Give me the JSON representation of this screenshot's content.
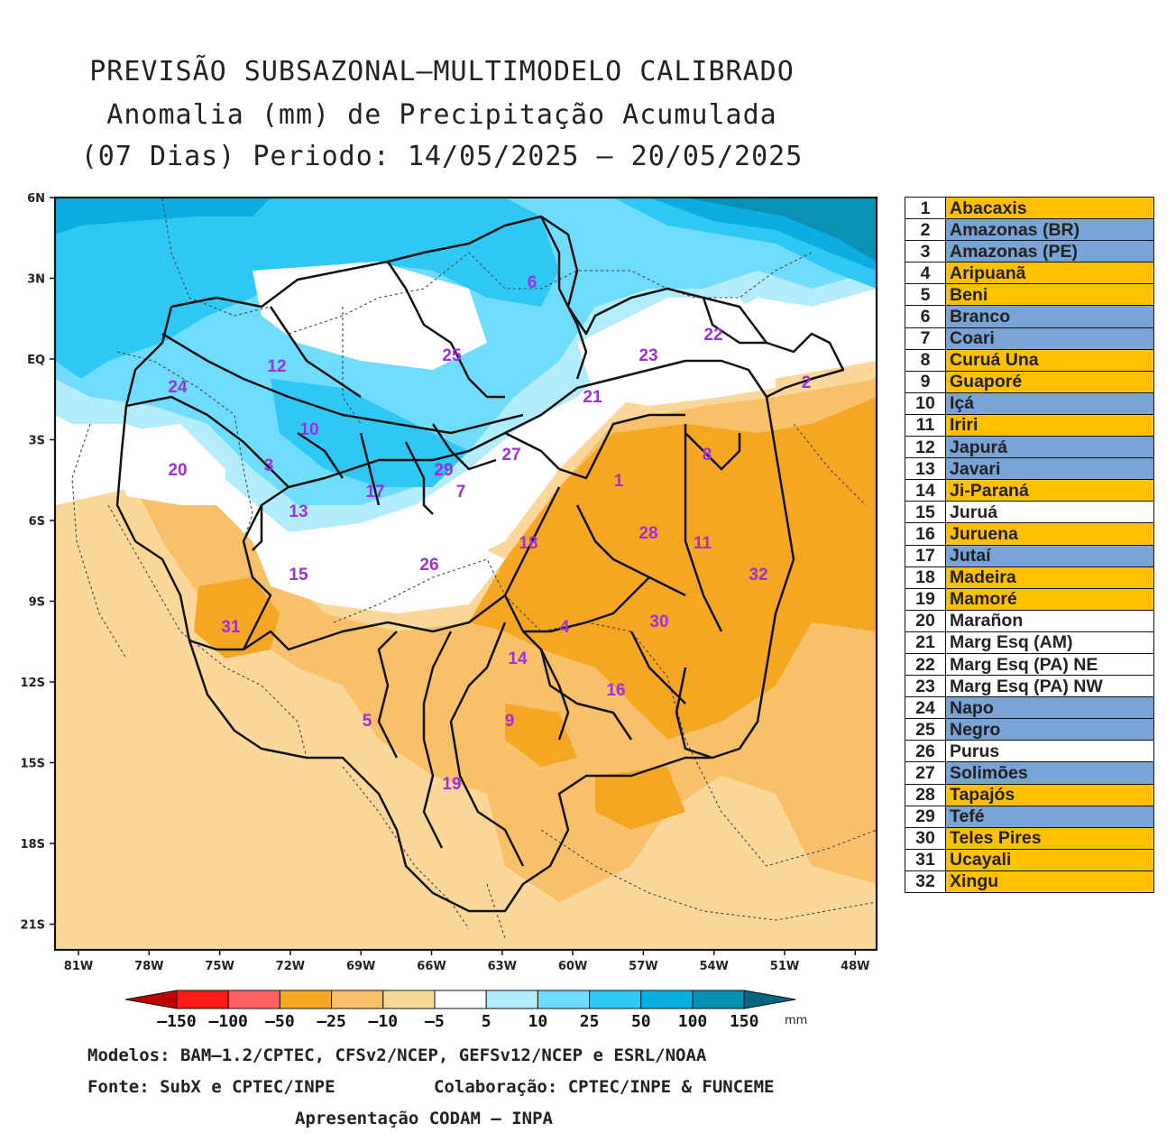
{
  "title": {
    "line1": "PREVISÃO SUBSAZONAL–MULTIMODELO CALIBRADO",
    "line2": "Anomalia (mm) de Precipitação Acumulada",
    "line3": "(07 Dias) Periodo: 14/05/2025 – 20/05/2025"
  },
  "axes": {
    "lat_labels": [
      "6N",
      "3N",
      "EQ",
      "3S",
      "6S",
      "9S",
      "12S",
      "15S",
      "18S",
      "21S"
    ],
    "lon_labels": [
      "81W",
      "78W",
      "75W",
      "72W",
      "69W",
      "66W",
      "63W",
      "60W",
      "57W",
      "54W",
      "51W",
      "48W"
    ]
  },
  "basin_labels": [
    "1",
    "2",
    "3",
    "4",
    "5",
    "6",
    "7",
    "8",
    "9",
    "10",
    "11",
    "12",
    "13",
    "14",
    "15",
    "16",
    "17",
    "18",
    "19",
    "20",
    "21",
    "22",
    "23",
    "24",
    "25",
    "26",
    "27",
    "28",
    "29",
    "30",
    "31",
    "32"
  ],
  "colors": {
    "neg150": "#c00000",
    "neg100": "#ff1a1a",
    "neg50": "#ff6060",
    "neg25": "#f5a623",
    "neg10": "#f9c06a",
    "neg5": "#fbd89a",
    "zero": "#ffffff",
    "pos5": "#b3ecfb",
    "pos10": "#6fdcfb",
    "pos25": "#2fc8f5",
    "pos50": "#0aaee0",
    "pos100": "#0a8fb5",
    "pos150": "#08657f",
    "basin_label": "#9b30e0",
    "legend_orange": "#ffc000",
    "legend_blue": "#7aa3d6",
    "legend_white": "#ffffff"
  },
  "colorbar": {
    "labels": [
      "-150",
      "-100",
      "-50",
      "-25",
      "-10",
      "-5",
      "5",
      "10",
      "25",
      "50",
      "100",
      "150"
    ],
    "unit": "mm"
  },
  "legend": [
    {
      "num": "1",
      "name": "Abacaxis",
      "cat": "orange"
    },
    {
      "num": "2",
      "name": "Amazonas (BR)",
      "cat": "blue"
    },
    {
      "num": "3",
      "name": "Amazonas (PE)",
      "cat": "blue"
    },
    {
      "num": "4",
      "name": "Aripuanã",
      "cat": "orange"
    },
    {
      "num": "5",
      "name": "Beni",
      "cat": "orange"
    },
    {
      "num": "6",
      "name": "Branco",
      "cat": "blue"
    },
    {
      "num": "7",
      "name": "Coari",
      "cat": "blue"
    },
    {
      "num": "8",
      "name": "Curuá Una",
      "cat": "orange"
    },
    {
      "num": "9",
      "name": "Guaporé",
      "cat": "orange"
    },
    {
      "num": "10",
      "name": "Içá",
      "cat": "blue"
    },
    {
      "num": "11",
      "name": "Iriri",
      "cat": "orange"
    },
    {
      "num": "12",
      "name": "Japurá",
      "cat": "blue"
    },
    {
      "num": "13",
      "name": "Javari",
      "cat": "blue"
    },
    {
      "num": "14",
      "name": "Ji-Paraná",
      "cat": "orange"
    },
    {
      "num": "15",
      "name": "Juruá",
      "cat": "white"
    },
    {
      "num": "16",
      "name": "Juruena",
      "cat": "orange"
    },
    {
      "num": "17",
      "name": "Jutaí",
      "cat": "blue"
    },
    {
      "num": "18",
      "name": "Madeira",
      "cat": "orange"
    },
    {
      "num": "19",
      "name": "Mamoré",
      "cat": "orange"
    },
    {
      "num": "20",
      "name": "Marañon",
      "cat": "white"
    },
    {
      "num": "21",
      "name": "Marg Esq (AM)",
      "cat": "white"
    },
    {
      "num": "22",
      "name": "Marg Esq (PA) NE",
      "cat": "white"
    },
    {
      "num": "23",
      "name": "Marg Esq (PA) NW",
      "cat": "white"
    },
    {
      "num": "24",
      "name": "Napo",
      "cat": "blue"
    },
    {
      "num": "25",
      "name": "Negro",
      "cat": "blue"
    },
    {
      "num": "26",
      "name": "Purus",
      "cat": "white"
    },
    {
      "num": "27",
      "name": "Solimões",
      "cat": "blue"
    },
    {
      "num": "28",
      "name": "Tapajós",
      "cat": "orange"
    },
    {
      "num": "29",
      "name": "Tefé",
      "cat": "blue"
    },
    {
      "num": "30",
      "name": "Teles Pires",
      "cat": "orange"
    },
    {
      "num": "31",
      "name": "Ucayali",
      "cat": "orange"
    },
    {
      "num": "32",
      "name": "Xingu",
      "cat": "orange"
    }
  ],
  "footer": {
    "models": "Modelos: BAM–1.2/CPTEC, CFSv2/NCEP, GEFSv12/NCEP e ESRL/NOAA",
    "source": "Fonte: SubX e CPTEC/INPE",
    "collab": "Colaboração: CPTEC/INPE & FUNCEME",
    "presentation": "Apresentação CODAM – INPA"
  }
}
